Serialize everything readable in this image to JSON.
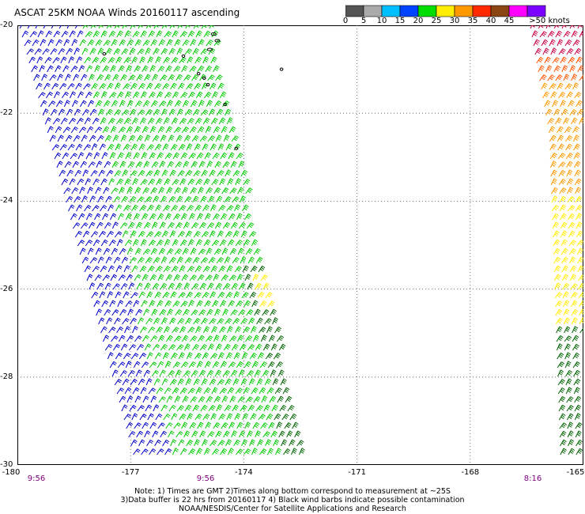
{
  "title": "ASCAT 25KM NOAA Winds 20160117 ascending",
  "colorbar": {
    "labels": [
      "0",
      "5",
      "10",
      "15",
      "20",
      "25",
      "30",
      "35",
      "40",
      "45",
      ">50 knots"
    ],
    "colors": [
      "#555555",
      "#aaaaaa",
      "#00bfff",
      "#0044ff",
      "#00dd00",
      "#ffee00",
      "#ff9900",
      "#ff2a00",
      "#8b4513",
      "#ff00ff",
      "#7a00ff"
    ]
  },
  "axes": {
    "y_labels": [
      "-20",
      "-22",
      "-24",
      "-26",
      "-28",
      "-30"
    ],
    "x_labels": [
      "-180",
      "-177",
      "-174",
      "-171",
      "-168",
      "-165"
    ],
    "lon_range": [
      -180,
      -165
    ],
    "lat_range": [
      -30,
      -20
    ],
    "grid": "dotted"
  },
  "pass_times": [
    "9:56",
    "9:56",
    "8:16"
  ],
  "notes": [
    "Note: 1) Times are GMT 2)Times along bottom correspond to measurement at ~25S",
    "3)Data buffer is 22 hrs from 20160117 4) Black wind barbs indicate possible contamination",
    "NOAA/NESDIS/Center for Satellite Applications and Research"
  ],
  "legend_colors": {
    "speed_10_15": "#0000cc",
    "speed_15_20": "#00cc00",
    "speed_20_plus_dark": "#006400",
    "speed_25": "#ffee00",
    "speed_30": "#ff9900",
    "speed_35": "#ff5500",
    "speed_40": "#cc0044",
    "land": "#000000"
  }
}
